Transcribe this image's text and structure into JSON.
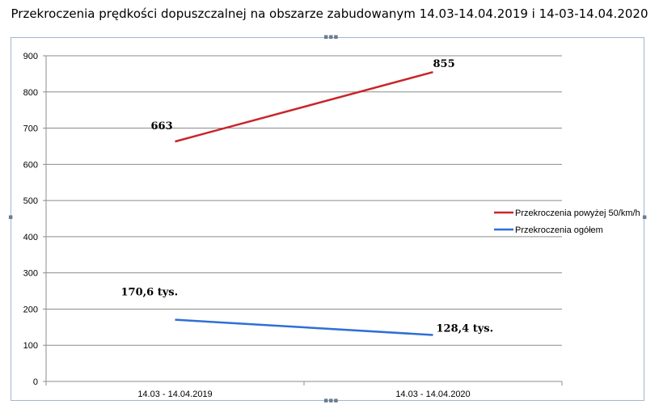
{
  "chart_data": {
    "type": "line",
    "title": "Przekroczenia prędkości dopuszczalnej na obszarze zabudowanym 14.03-14.04.2019 i 14-03-14.04.2020",
    "categories": [
      "14.03 - 14.04.2019",
      "14.03 - 14.04.2020"
    ],
    "ylim": [
      0,
      900
    ],
    "yticks": [
      "0",
      "100",
      "200",
      "300",
      "400",
      "500",
      "600",
      "700",
      "800",
      "900"
    ],
    "grid": true,
    "legend_position": "right",
    "series": [
      {
        "name": "Przekroczenia powyżej 50/km/h",
        "values": [
          663,
          855
        ],
        "color": "#c8262a",
        "labels": [
          "663",
          "855"
        ]
      },
      {
        "name": "Przekroczenia ogółem",
        "values": [
          170.6,
          128.4
        ],
        "color": "#2f6fd6",
        "labels": [
          "170,6 tys.",
          "128,4 tys."
        ]
      }
    ]
  }
}
